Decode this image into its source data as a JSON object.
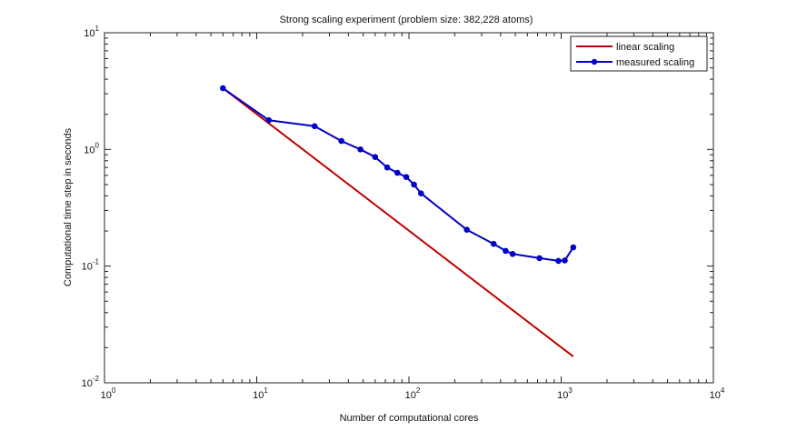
{
  "chart_data": {
    "type": "line",
    "title": "Strong scaling experiment (problem size: 382,228 atoms)",
    "xlabel": "Number of computational cores",
    "ylabel": "Computational time step in seconds",
    "xscale": "log",
    "yscale": "log",
    "xlim": [
      1,
      10000
    ],
    "ylim": [
      0.01,
      10
    ],
    "grid": false,
    "legend_position": "top-right",
    "x_ticks": [
      {
        "value": 1,
        "base": "10",
        "exp": "0"
      },
      {
        "value": 10,
        "base": "10",
        "exp": "1"
      },
      {
        "value": 100,
        "base": "10",
        "exp": "2"
      },
      {
        "value": 1000,
        "base": "10",
        "exp": "3"
      },
      {
        "value": 10000,
        "base": "10",
        "exp": "4"
      }
    ],
    "y_ticks": [
      {
        "value": 0.01,
        "base": "10",
        "exp": "-2"
      },
      {
        "value": 0.1,
        "base": "10",
        "exp": "-1"
      },
      {
        "value": 1,
        "base": "10",
        "exp": "0"
      },
      {
        "value": 10,
        "base": "10",
        "exp": "1"
      }
    ],
    "series": [
      {
        "name": "linear scaling",
        "color": "#c00000",
        "marker": "none",
        "x": [
          6,
          1200
        ],
        "y": [
          3.35,
          0.0168
        ]
      },
      {
        "name": "measured scaling",
        "color": "#0000c8",
        "marker": "circle",
        "x": [
          6,
          12,
          24,
          36,
          48,
          60,
          72,
          84,
          96,
          108,
          120,
          240,
          360,
          432,
          480,
          720,
          960,
          1056,
          1200
        ],
        "y": [
          3.35,
          1.78,
          1.58,
          1.18,
          1.0,
          0.86,
          0.7,
          0.63,
          0.58,
          0.5,
          0.42,
          0.205,
          0.155,
          0.135,
          0.127,
          0.117,
          0.111,
          0.112,
          0.145
        ]
      }
    ]
  }
}
